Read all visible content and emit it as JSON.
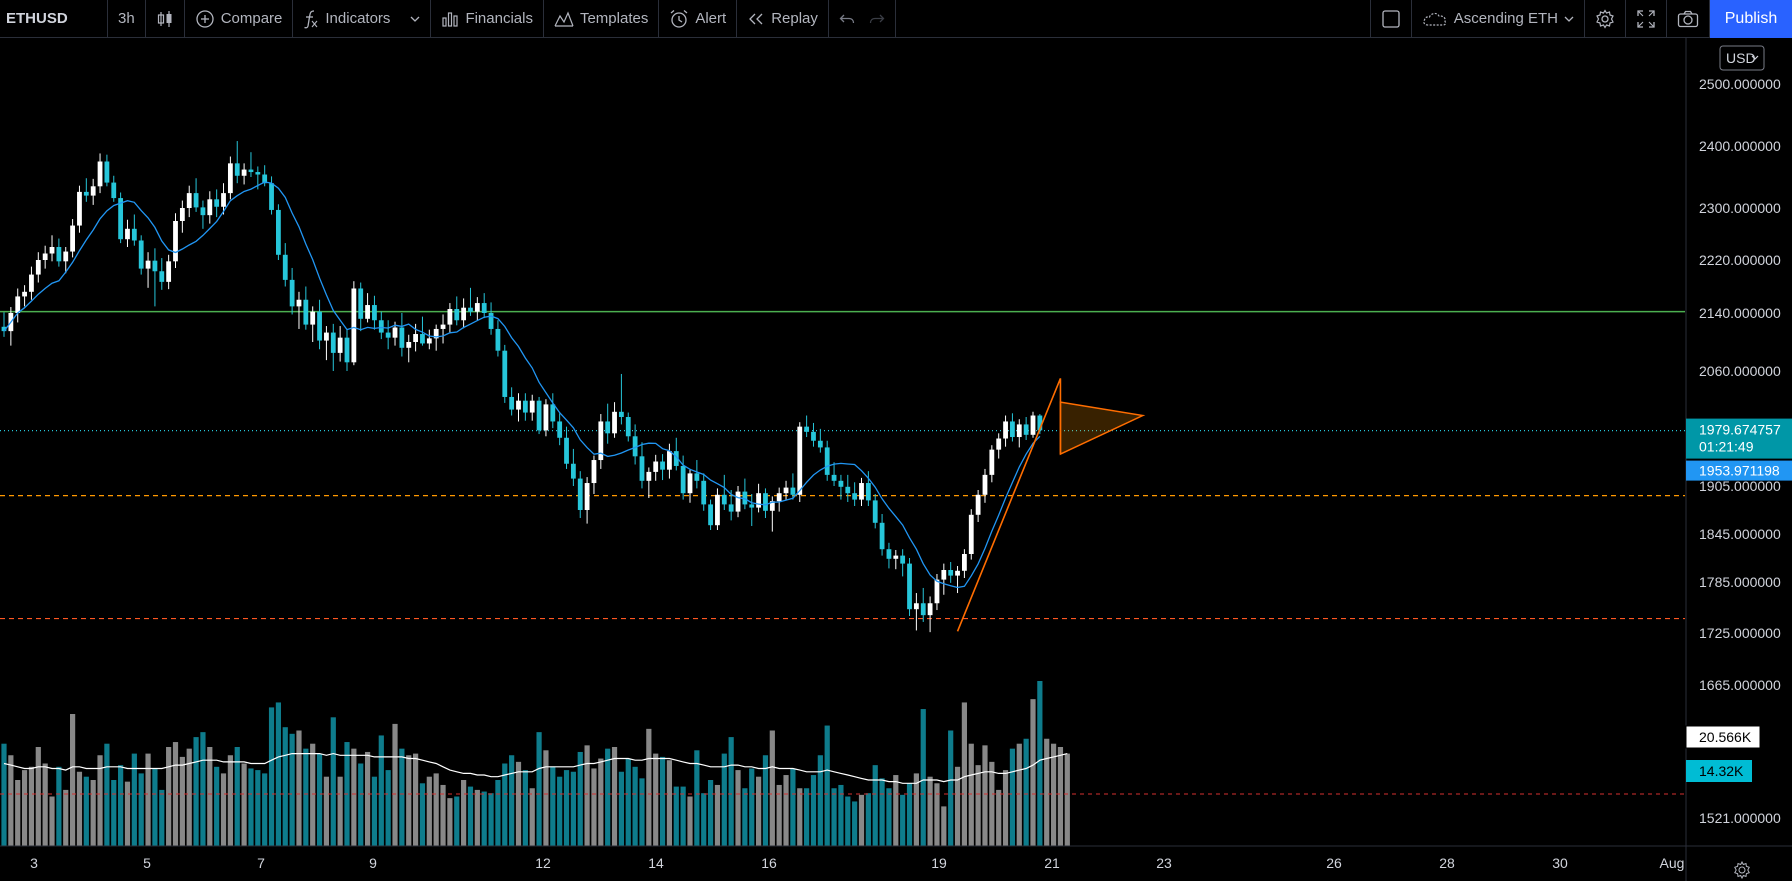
{
  "toolbar": {
    "symbol": "ETHUSD",
    "interval": "3h",
    "compare": "Compare",
    "indicators": "Indicators",
    "financials": "Financials",
    "templates": "Templates",
    "alert": "Alert",
    "replay": "Replay",
    "layout_name": "Ascending ETH",
    "publish": "Publish"
  },
  "colors": {
    "up": "#ffffff",
    "down": "#26c6da",
    "ma": "#2196f3",
    "resistance": "#4caf50",
    "price_line": "#26c6da",
    "support1": "#ff9800",
    "support2": "#ff5722",
    "vol_up": "#888888",
    "vol_down": "#0e7c8c",
    "drawing": "#ff6d00"
  },
  "chart_data": {
    "type": "candlestick",
    "symbol": "ETHUSD",
    "interval": "3h",
    "currency": "USD",
    "price_axis": {
      "ticks": [
        "2500.000000",
        "2400.000000",
        "2300.000000",
        "2220.000000",
        "2140.000000",
        "2060.000000",
        "1905.000000",
        "1845.000000",
        "1785.000000",
        "1725.000000",
        "1665.000000",
        "1521.000000"
      ],
      "ylim": [
        1500,
        2530
      ]
    },
    "date_axis": [
      "3",
      "5",
      "7",
      "9",
      "12",
      "14",
      "16",
      "19",
      "21",
      "23",
      "26",
      "28",
      "30",
      "Aug"
    ],
    "horizontal_lines": [
      {
        "price": 2142,
        "style": "solid"
      },
      {
        "price": 1979.674757,
        "style": "dotted"
      },
      {
        "price": 1893,
        "style": "dashed"
      },
      {
        "price": 1742,
        "style": "dashed"
      }
    ],
    "last_price": "1979.674757",
    "countdown": "01:21:49",
    "ma_value": "1953.971198",
    "volume_value": "20.566K",
    "volume_ma_value": "14.32K",
    "candles": [
      [
        2121,
        2141,
        2107,
        2115
      ],
      [
        2115,
        2149,
        2095,
        2140
      ],
      [
        2140,
        2177,
        2127,
        2165
      ],
      [
        2165,
        2182,
        2150,
        2172
      ],
      [
        2172,
        2210,
        2160,
        2198
      ],
      [
        2198,
        2232,
        2186,
        2220
      ],
      [
        2220,
        2242,
        2207,
        2230
      ],
      [
        2230,
        2258,
        2218,
        2240
      ],
      [
        2240,
        2253,
        2210,
        2218
      ],
      [
        2218,
        2240,
        2200,
        2233
      ],
      [
        2233,
        2283,
        2224,
        2273
      ],
      [
        2273,
        2336,
        2262,
        2326
      ],
      [
        2326,
        2348,
        2310,
        2320
      ],
      [
        2320,
        2347,
        2305,
        2335
      ],
      [
        2335,
        2388,
        2324,
        2375
      ],
      [
        2375,
        2386,
        2335,
        2341
      ],
      [
        2341,
        2352,
        2310,
        2316
      ],
      [
        2316,
        2325,
        2246,
        2252
      ],
      [
        2252,
        2282,
        2240,
        2268
      ],
      [
        2268,
        2290,
        2242,
        2250
      ],
      [
        2250,
        2258,
        2198,
        2207
      ],
      [
        2207,
        2232,
        2178,
        2219
      ],
      [
        2219,
        2238,
        2150,
        2203
      ],
      [
        2203,
        2223,
        2175,
        2187
      ],
      [
        2187,
        2228,
        2176,
        2218
      ],
      [
        2218,
        2292,
        2208,
        2280
      ],
      [
        2280,
        2312,
        2262,
        2300
      ],
      [
        2300,
        2336,
        2286,
        2324
      ],
      [
        2324,
        2348,
        2294,
        2301
      ],
      [
        2301,
        2312,
        2268,
        2289
      ],
      [
        2289,
        2327,
        2276,
        2314
      ],
      [
        2314,
        2330,
        2286,
        2302
      ],
      [
        2302,
        2340,
        2290,
        2324
      ],
      [
        2324,
        2383,
        2314,
        2372
      ],
      [
        2372,
        2408,
        2340,
        2352
      ],
      [
        2352,
        2372,
        2338,
        2362
      ],
      [
        2362,
        2390,
        2350,
        2358
      ],
      [
        2358,
        2367,
        2330,
        2354
      ],
      [
        2354,
        2369,
        2335,
        2340
      ],
      [
        2340,
        2351,
        2290,
        2297
      ],
      [
        2297,
        2306,
        2220,
        2228
      ],
      [
        2228,
        2246,
        2180,
        2190
      ],
      [
        2190,
        2208,
        2138,
        2150
      ],
      [
        2150,
        2172,
        2118,
        2160
      ],
      [
        2160,
        2180,
        2117,
        2124
      ],
      [
        2124,
        2150,
        2100,
        2142
      ],
      [
        2142,
        2160,
        2090,
        2102
      ],
      [
        2102,
        2122,
        2075,
        2113
      ],
      [
        2113,
        2125,
        2060,
        2085
      ],
      [
        2085,
        2122,
        2073,
        2106
      ],
      [
        2106,
        2118,
        2060,
        2072
      ],
      [
        2072,
        2188,
        2068,
        2177
      ],
      [
        2177,
        2186,
        2115,
        2132
      ],
      [
        2132,
        2170,
        2127,
        2152
      ],
      [
        2152,
        2166,
        2117,
        2130
      ],
      [
        2130,
        2142,
        2104,
        2113
      ],
      [
        2113,
        2130,
        2090,
        2106
      ],
      [
        2106,
        2128,
        2095,
        2120
      ],
      [
        2120,
        2140,
        2080,
        2092
      ],
      [
        2092,
        2110,
        2072,
        2100
      ],
      [
        2100,
        2125,
        2087,
        2111
      ],
      [
        2111,
        2135,
        2095,
        2098
      ],
      [
        2098,
        2117,
        2090,
        2105
      ],
      [
        2105,
        2124,
        2088,
        2118
      ],
      [
        2118,
        2138,
        2098,
        2124
      ],
      [
        2124,
        2155,
        2112,
        2146
      ],
      [
        2146,
        2165,
        2123,
        2130
      ],
      [
        2130,
        2162,
        2119,
        2148
      ],
      [
        2148,
        2178,
        2136,
        2142
      ],
      [
        2142,
        2164,
        2130,
        2155
      ],
      [
        2155,
        2170,
        2133,
        2140
      ],
      [
        2140,
        2156,
        2110,
        2118
      ],
      [
        2118,
        2130,
        2080,
        2088
      ],
      [
        2088,
        2096,
        2017,
        2025
      ],
      [
        2025,
        2038,
        2000,
        2008
      ],
      [
        2008,
        2030,
        1992,
        2020
      ],
      [
        2020,
        2030,
        1993,
        2004
      ],
      [
        2004,
        2028,
        1993,
        2020
      ],
      [
        2020,
        2025,
        1975,
        1980
      ],
      [
        1980,
        2022,
        1972,
        2015
      ],
      [
        2015,
        2030,
        1983,
        1992
      ],
      [
        1992,
        2003,
        1960,
        1970
      ],
      [
        1970,
        1985,
        1928,
        1935
      ],
      [
        1935,
        1955,
        1905,
        1915
      ],
      [
        1915,
        1925,
        1865,
        1875
      ],
      [
        1875,
        1917,
        1858,
        1909
      ],
      [
        1909,
        1946,
        1895,
        1940
      ],
      [
        1940,
        2002,
        1928,
        1992
      ],
      [
        1992,
        2016,
        1962,
        1976
      ],
      [
        1976,
        2018,
        1970,
        2005
      ],
      [
        2005,
        2056,
        1988,
        1998
      ],
      [
        1998,
        2004,
        1965,
        1972
      ],
      [
        1972,
        1988,
        1934,
        1945
      ],
      [
        1945,
        1964,
        1902,
        1912
      ],
      [
        1912,
        1930,
        1890,
        1924
      ],
      [
        1924,
        1947,
        1912,
        1938
      ],
      [
        1938,
        1948,
        1913,
        1927
      ],
      [
        1927,
        1962,
        1915,
        1952
      ],
      [
        1952,
        1970,
        1926,
        1932
      ],
      [
        1932,
        1946,
        1888,
        1896
      ],
      [
        1896,
        1928,
        1884,
        1922
      ],
      [
        1922,
        1940,
        1902,
        1912
      ],
      [
        1912,
        1922,
        1874,
        1882
      ],
      [
        1882,
        1888,
        1850,
        1856
      ],
      [
        1856,
        1902,
        1850,
        1894
      ],
      [
        1894,
        1920,
        1875,
        1882
      ],
      [
        1882,
        1900,
        1862,
        1873
      ],
      [
        1873,
        1905,
        1866,
        1898
      ],
      [
        1898,
        1915,
        1876,
        1882
      ],
      [
        1882,
        1895,
        1855,
        1878
      ],
      [
        1878,
        1908,
        1872,
        1896
      ],
      [
        1896,
        1902,
        1865,
        1874
      ],
      [
        1874,
        1892,
        1848,
        1886
      ],
      [
        1886,
        1903,
        1873,
        1896
      ],
      [
        1896,
        1912,
        1888,
        1903
      ],
      [
        1903,
        1922,
        1888,
        1894
      ],
      [
        1894,
        1991,
        1885,
        1985
      ],
      [
        1985,
        2000,
        1971,
        1978
      ],
      [
        1978,
        1990,
        1958,
        1966
      ],
      [
        1966,
        1982,
        1950,
        1957
      ],
      [
        1957,
        1966,
        1912,
        1920
      ],
      [
        1920,
        1937,
        1905,
        1912
      ],
      [
        1912,
        1920,
        1888,
        1904
      ],
      [
        1904,
        1920,
        1885,
        1896
      ],
      [
        1896,
        1910,
        1880,
        1888
      ],
      [
        1888,
        1916,
        1880,
        1909
      ],
      [
        1909,
        1925,
        1880,
        1887
      ],
      [
        1887,
        1895,
        1852,
        1859
      ],
      [
        1859,
        1870,
        1818,
        1826
      ],
      [
        1826,
        1834,
        1802,
        1814
      ],
      [
        1814,
        1825,
        1801,
        1818
      ],
      [
        1818,
        1826,
        1792,
        1808
      ],
      [
        1808,
        1815,
        1745,
        1753
      ],
      [
        1753,
        1772,
        1728,
        1760
      ],
      [
        1760,
        1778,
        1738,
        1746
      ],
      [
        1746,
        1768,
        1726,
        1760
      ],
      [
        1760,
        1795,
        1752,
        1788
      ],
      [
        1788,
        1808,
        1770,
        1800
      ],
      [
        1800,
        1810,
        1784,
        1793
      ],
      [
        1793,
        1805,
        1772,
        1799
      ],
      [
        1799,
        1826,
        1790,
        1820
      ],
      [
        1820,
        1876,
        1813,
        1869
      ],
      [
        1869,
        1900,
        1860,
        1894
      ],
      [
        1894,
        1928,
        1884,
        1920
      ],
      [
        1920,
        1960,
        1910,
        1954
      ],
      [
        1954,
        1976,
        1942,
        1969
      ],
      [
        1969,
        2000,
        1958,
        1992
      ],
      [
        1992,
        2003,
        1965,
        1971
      ],
      [
        1971,
        1995,
        1957,
        1988
      ],
      [
        1988,
        1998,
        1967,
        1974
      ],
      [
        1974,
        2005,
        1970,
        2000
      ],
      [
        2000,
        2002,
        1975,
        1980
      ]
    ],
    "volume": [
      0.62,
      0.55,
      0.4,
      0.46,
      0.48,
      0.6,
      0.5,
      0.3,
      0.48,
      0.34,
      0.8,
      0.45,
      0.42,
      0.4,
      0.55,
      0.62,
      0.4,
      0.49,
      0.39,
      0.56,
      0.44,
      0.56,
      0.47,
      0.34,
      0.6,
      0.63,
      0.54,
      0.59,
      0.66,
      0.69,
      0.6,
      0.48,
      0.44,
      0.55,
      0.6,
      0.5,
      0.47,
      0.46,
      0.44,
      0.84,
      0.87,
      0.72,
      0.68,
      0.7,
      0.59,
      0.62,
      0.56,
      0.42,
      0.78,
      0.42,
      0.63,
      0.59,
      0.5,
      0.57,
      0.42,
      0.67,
      0.46,
      0.74,
      0.59,
      0.55,
      0.56,
      0.38,
      0.42,
      0.44,
      0.37,
      0.29,
      0.3,
      0.4,
      0.36,
      0.34,
      0.33,
      0.32,
      0.4,
      0.5,
      0.55,
      0.51,
      0.46,
      0.35,
      0.69,
      0.58,
      0.48,
      0.42,
      0.46,
      0.45,
      0.57,
      0.61,
      0.47,
      0.53,
      0.59,
      0.6,
      0.45,
      0.53,
      0.48,
      0.41,
      0.71,
      0.56,
      0.54,
      0.52,
      0.36,
      0.36,
      0.3,
      0.58,
      0.32,
      0.4,
      0.37,
      0.56,
      0.66,
      0.46,
      0.35,
      0.47,
      0.42,
      0.55,
      0.7,
      0.37,
      0.43,
      0.47,
      0.35,
      0.35,
      0.43,
      0.55,
      0.73,
      0.35,
      0.37,
      0.3,
      0.27,
      0.31,
      0.32,
      0.49,
      0.41,
      0.35,
      0.43,
      0.31,
      0.38,
      0.44,
      0.83,
      0.42,
      0.38,
      0.24,
      0.7,
      0.48,
      0.87,
      0.62,
      0.49,
      0.61,
      0.51,
      0.34,
      0.46,
      0.59,
      0.62,
      0.65,
      0.89,
      1.0,
      0.65,
      0.62,
      0.6,
      0.56
    ],
    "volume_ma": [
      0.5,
      0.49,
      0.48,
      0.47,
      0.47,
      0.48,
      0.48,
      0.47,
      0.47,
      0.46,
      0.48,
      0.48,
      0.47,
      0.47,
      0.47,
      0.48,
      0.48,
      0.48,
      0.47,
      0.47,
      0.47,
      0.47,
      0.47,
      0.47,
      0.48,
      0.49,
      0.49,
      0.5,
      0.51,
      0.52,
      0.52,
      0.52,
      0.51,
      0.51,
      0.51,
      0.51,
      0.5,
      0.5,
      0.5,
      0.52,
      0.54,
      0.55,
      0.56,
      0.56,
      0.56,
      0.56,
      0.56,
      0.55,
      0.56,
      0.55,
      0.55,
      0.55,
      0.55,
      0.55,
      0.54,
      0.54,
      0.54,
      0.54,
      0.54,
      0.53,
      0.53,
      0.52,
      0.51,
      0.5,
      0.48,
      0.46,
      0.45,
      0.44,
      0.44,
      0.43,
      0.43,
      0.42,
      0.42,
      0.43,
      0.44,
      0.45,
      0.45,
      0.45,
      0.47,
      0.48,
      0.48,
      0.48,
      0.48,
      0.48,
      0.49,
      0.5,
      0.5,
      0.51,
      0.52,
      0.53,
      0.53,
      0.53,
      0.52,
      0.52,
      0.53,
      0.53,
      0.53,
      0.53,
      0.52,
      0.51,
      0.5,
      0.5,
      0.49,
      0.48,
      0.48,
      0.48,
      0.49,
      0.49,
      0.48,
      0.48,
      0.47,
      0.47,
      0.48,
      0.47,
      0.47,
      0.47,
      0.46,
      0.45,
      0.45,
      0.45,
      0.46,
      0.45,
      0.44,
      0.43,
      0.42,
      0.41,
      0.4,
      0.4,
      0.4,
      0.39,
      0.39,
      0.38,
      0.38,
      0.38,
      0.4,
      0.4,
      0.4,
      0.39,
      0.4,
      0.4,
      0.42,
      0.43,
      0.44,
      0.45,
      0.45,
      0.44,
      0.44,
      0.45,
      0.46,
      0.47,
      0.49,
      0.52,
      0.53,
      0.54,
      0.55,
      0.56
    ],
    "triangle_pattern": {
      "pole_start": {
        "bar": 139,
        "price": 1727
      },
      "pole_top": {
        "bar": 154,
        "price": 2050
      },
      "upper_line": {
        "bar": 154,
        "price": 2018
      },
      "lower_line": {
        "bar": 154,
        "price": 1948
      },
      "apex": {
        "bar": 166,
        "price": 2000
      }
    }
  }
}
